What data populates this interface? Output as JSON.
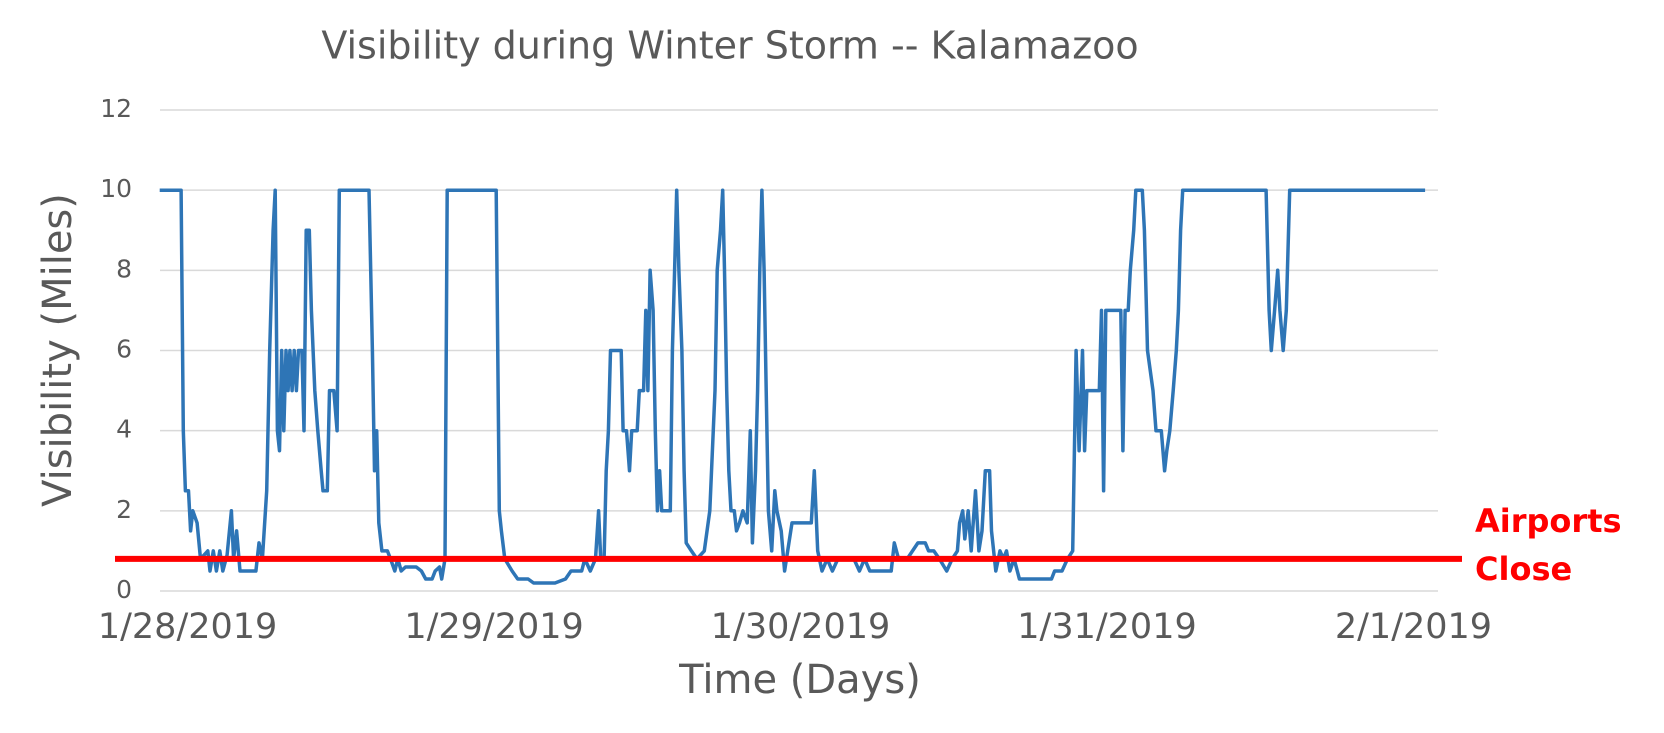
{
  "chart_data": {
    "type": "line",
    "title": "Visibility during Winter Storm -- Kalamazoo",
    "x_label": "Time (Days)",
    "y_label": "Visibility (Miles)",
    "color": "#2e75b6",
    "grid": true,
    "xlim": [
      -0.09,
      4.08
    ],
    "xticks": [
      {
        "value": 0,
        "label": "1/28/2019"
      },
      {
        "value": 1,
        "label": "1/29/2019"
      },
      {
        "value": 2,
        "label": "1/30/2019"
      },
      {
        "value": 3,
        "label": "1/31/2019"
      },
      {
        "value": 4,
        "label": "2/1/2019"
      }
    ],
    "ylim": [
      0,
      12
    ],
    "yticks": [
      0,
      2,
      4,
      6,
      8,
      10,
      12
    ],
    "x": [
      -0.091,
      -0.021,
      -0.014,
      -0.007,
      0.003,
      0.01,
      0.017,
      0.031,
      0.042,
      0.066,
      0.073,
      0.084,
      0.094,
      0.105,
      0.115,
      0.129,
      0.143,
      0.15,
      0.16,
      0.171,
      0.188,
      0.223,
      0.233,
      0.244,
      0.258,
      0.268,
      0.279,
      0.286,
      0.293,
      0.3,
      0.307,
      0.314,
      0.321,
      0.328,
      0.334,
      0.341,
      0.348,
      0.355,
      0.362,
      0.373,
      0.38,
      0.387,
      0.397,
      0.404,
      0.415,
      0.425,
      0.436,
      0.442,
      0.456,
      0.463,
      0.477,
      0.488,
      0.495,
      0.537,
      0.592,
      0.603,
      0.61,
      0.617,
      0.624,
      0.634,
      0.652,
      0.662,
      0.676,
      0.686,
      0.697,
      0.711,
      0.746,
      0.763,
      0.777,
      0.798,
      0.808,
      0.822,
      0.829,
      0.84,
      0.847,
      0.92,
      1.007,
      1.017,
      1.024,
      1.035,
      1.059,
      1.077,
      1.111,
      1.129,
      1.164,
      1.199,
      1.233,
      1.251,
      1.286,
      1.296,
      1.314,
      1.331,
      1.341,
      1.348,
      1.359,
      1.366,
      1.373,
      1.38,
      1.415,
      1.421,
      1.432,
      1.442,
      1.449,
      1.467,
      1.474,
      1.488,
      1.495,
      1.502,
      1.509,
      1.519,
      1.526,
      1.533,
      1.54,
      1.547,
      1.564,
      1.575,
      1.582,
      1.589,
      1.596,
      1.603,
      1.613,
      1.62,
      1.627,
      1.644,
      1.662,
      1.686,
      1.704,
      1.721,
      1.728,
      1.739,
      1.746,
      1.752,
      1.759,
      1.766,
      1.773,
      1.784,
      1.791,
      1.801,
      1.812,
      1.826,
      1.836,
      1.843,
      1.853,
      1.86,
      1.867,
      1.874,
      1.881,
      1.888,
      1.895,
      1.906,
      1.916,
      1.923,
      1.937,
      1.948,
      1.958,
      1.972,
      2.0,
      2.035,
      2.045,
      2.056,
      2.07,
      2.087,
      2.104,
      2.122,
      2.174,
      2.192,
      2.209,
      2.226,
      2.261,
      2.296,
      2.306,
      2.32,
      2.348,
      2.383,
      2.407,
      2.418,
      2.435,
      2.453,
      2.477,
      2.495,
      2.512,
      2.519,
      2.529,
      2.536,
      2.547,
      2.557,
      2.571,
      2.582,
      2.592,
      2.603,
      2.617,
      2.623,
      2.637,
      2.651,
      2.662,
      2.672,
      2.683,
      2.697,
      2.714,
      2.749,
      2.784,
      2.819,
      2.829,
      2.853,
      2.871,
      2.888,
      2.899,
      2.909,
      2.92,
      2.927,
      2.934,
      2.958,
      2.975,
      2.982,
      2.989,
      2.996,
      3.01,
      3.045,
      3.052,
      3.059,
      3.069,
      3.076,
      3.087,
      3.094,
      3.115,
      3.122,
      3.132,
      3.15,
      3.16,
      3.177,
      3.188,
      3.195,
      3.205,
      3.216,
      3.226,
      3.233,
      3.24,
      3.247,
      3.324,
      3.428,
      3.519,
      3.529,
      3.536,
      3.547,
      3.557,
      3.564,
      3.575,
      3.585,
      3.596,
      3.742,
      3.916,
      4.038
    ],
    "values": [
      10,
      10,
      4,
      2.5,
      2.5,
      1.5,
      2,
      1.7,
      0.8,
      1,
      0.5,
      1,
      0.5,
      1,
      0.5,
      0.9,
      2,
      0.8,
      1.5,
      0.5,
      0.5,
      0.5,
      1.2,
      0.8,
      2.5,
      6,
      9,
      10,
      4,
      3.5,
      6,
      4,
      6,
      5,
      6,
      5,
      6,
      5,
      6,
      6,
      4,
      9,
      9,
      7,
      5,
      4,
      3,
      2.5,
      2.5,
      5,
      5,
      4,
      10,
      10,
      10,
      6,
      3,
      4,
      1.7,
      1,
      1,
      0.8,
      0.5,
      0.8,
      0.5,
      0.6,
      0.6,
      0.5,
      0.3,
      0.3,
      0.5,
      0.6,
      0.3,
      0.8,
      10,
      10,
      10,
      2,
      1.5,
      0.8,
      0.5,
      0.3,
      0.3,
      0.2,
      0.2,
      0.2,
      0.3,
      0.5,
      0.5,
      0.8,
      0.5,
      0.8,
      2,
      0.8,
      0.8,
      3,
      4,
      6,
      6,
      4,
      4,
      3,
      4,
      4,
      5,
      5,
      7,
      5,
      8,
      7,
      4,
      2,
      3,
      2,
      2,
      2,
      6,
      8,
      10,
      8,
      6,
      3,
      1.2,
      1,
      0.8,
      1,
      2,
      5,
      8,
      9,
      10,
      8,
      5,
      3,
      2,
      2,
      1.5,
      1.7,
      2,
      1.7,
      4,
      1.2,
      3,
      5,
      8,
      10,
      8,
      5,
      2,
      1,
      2.5,
      2,
      1.5,
      0.5,
      1,
      1.7,
      1.7,
      1.7,
      3,
      1,
      0.5,
      0.8,
      0.5,
      0.8,
      0.8,
      0.5,
      0.8,
      0.5,
      0.5,
      0.5,
      1.2,
      0.8,
      0.8,
      1.2,
      1.2,
      1,
      1,
      0.8,
      0.5,
      0.8,
      1,
      1.7,
      2,
      1.3,
      2,
      1,
      2.5,
      1,
      1.5,
      3,
      3,
      1.5,
      0.5,
      1,
      0.8,
      1,
      0.5,
      0.8,
      0.3,
      0.3,
      0.3,
      0.3,
      0.5,
      0.5,
      0.8,
      1,
      6,
      3.5,
      6,
      3.5,
      5,
      5,
      5,
      7,
      2.5,
      7,
      7,
      7,
      3.5,
      7,
      7,
      8,
      9,
      10,
      10,
      9,
      6,
      5,
      4,
      4,
      3,
      3.5,
      4,
      5,
      6,
      7,
      9,
      10,
      10,
      10,
      10,
      7,
      6,
      7,
      8,
      7,
      6,
      7,
      10,
      10,
      10,
      10
    ],
    "annotations": [
      {
        "text": [
          "Airports",
          "Close"
        ],
        "y": 0.8,
        "color": "#ff0000"
      }
    ]
  }
}
